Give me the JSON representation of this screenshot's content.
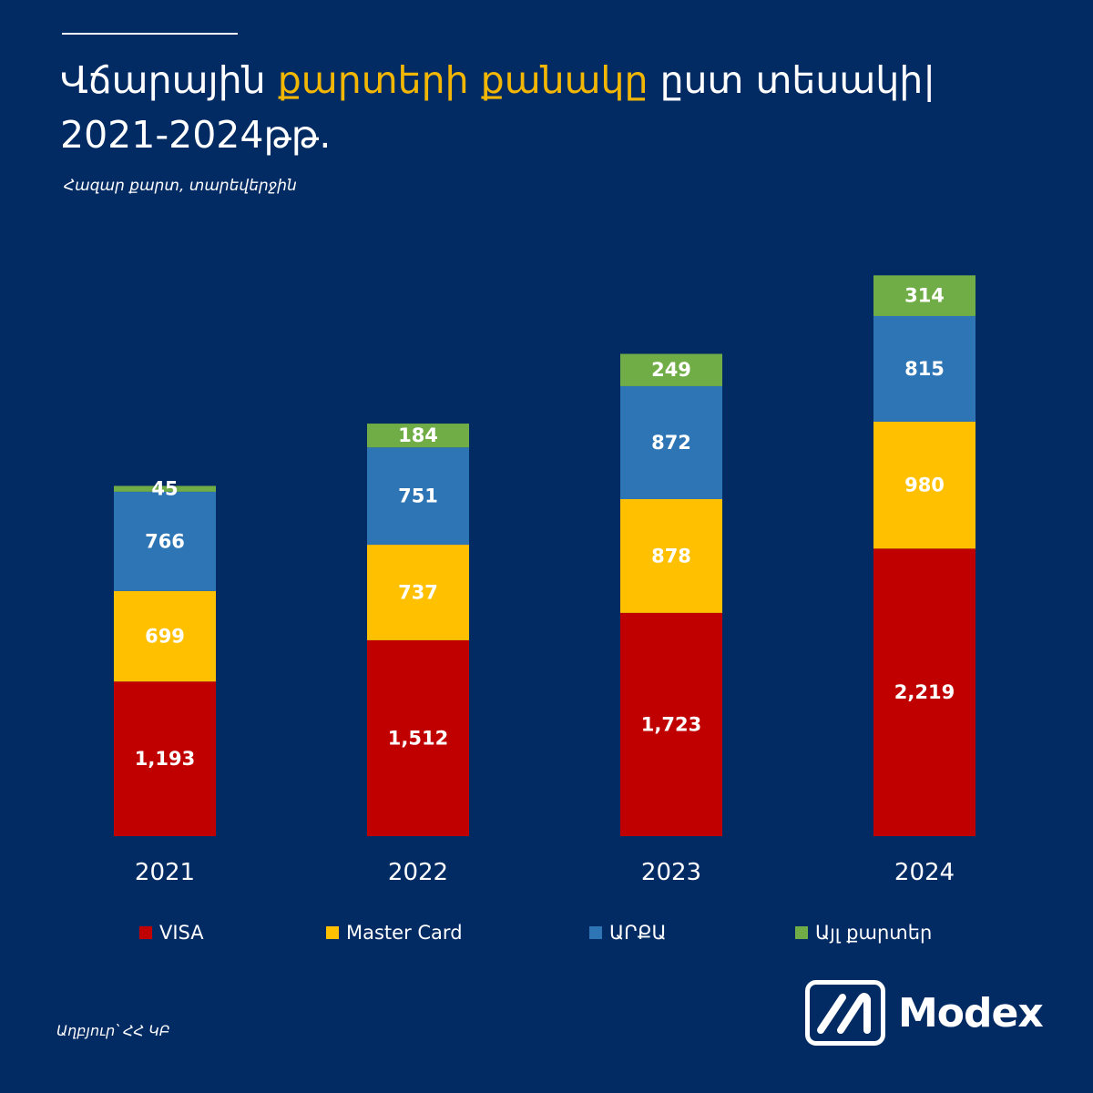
{
  "header": {
    "title_part1": "Վճարային ",
    "title_highlight": "քարտերի քանակը",
    "title_part2": " ըստ տեսակի|",
    "title_line2": "2021-2024թթ․",
    "subtitle": "Հազար քարտ, տարեվերջին"
  },
  "colors": {
    "background": "#022A63",
    "highlight": "#F2B705",
    "visa": "#C00000",
    "mastercard": "#FFC000",
    "arca": "#2E75B6",
    "other": "#70AD47"
  },
  "chart_data": {
    "type": "bar",
    "stacked": true,
    "categories": [
      "2021",
      "2022",
      "2023",
      "2024"
    ],
    "series": [
      {
        "name": "VISA",
        "values": [
          1193,
          1512,
          1723,
          2219
        ],
        "labels": [
          "1,193",
          "1,512",
          "1,723",
          "2,219"
        ],
        "color": "#C00000"
      },
      {
        "name": "Master Card",
        "values": [
          699,
          737,
          878,
          980
        ],
        "labels": [
          "699",
          "737",
          "878",
          "980"
        ],
        "color": "#FFC000"
      },
      {
        "name": "ԱՐՔԱ",
        "values": [
          766,
          751,
          872,
          815
        ],
        "labels": [
          "766",
          "751",
          "872",
          "815"
        ],
        "color": "#2E75B6"
      },
      {
        "name": "Այլ քարտեր",
        "values": [
          45,
          184,
          249,
          314
        ],
        "labels": [
          "45",
          "184",
          "249",
          "314"
        ],
        "color": "#70AD47"
      }
    ],
    "title": "Վճարային քարտերի քանակը ըստ տեսակի| 2021-2024թթ․",
    "ylabel": "Հազար քարտ, տարեվերջին",
    "grid": false,
    "legend_position": "bottom"
  },
  "legend": {
    "items": [
      {
        "label": "VISA",
        "color": "#C00000"
      },
      {
        "label": "Master Card",
        "color": "#FFC000"
      },
      {
        "label": "ԱՐՔԱ",
        "color": "#2E75B6"
      },
      {
        "label": "Այլ քարտեր",
        "color": "#70AD47"
      }
    ]
  },
  "footer": {
    "source": "Աղբյուր՝ ՀՀ ԿԲ",
    "logo_text": "Modex"
  }
}
